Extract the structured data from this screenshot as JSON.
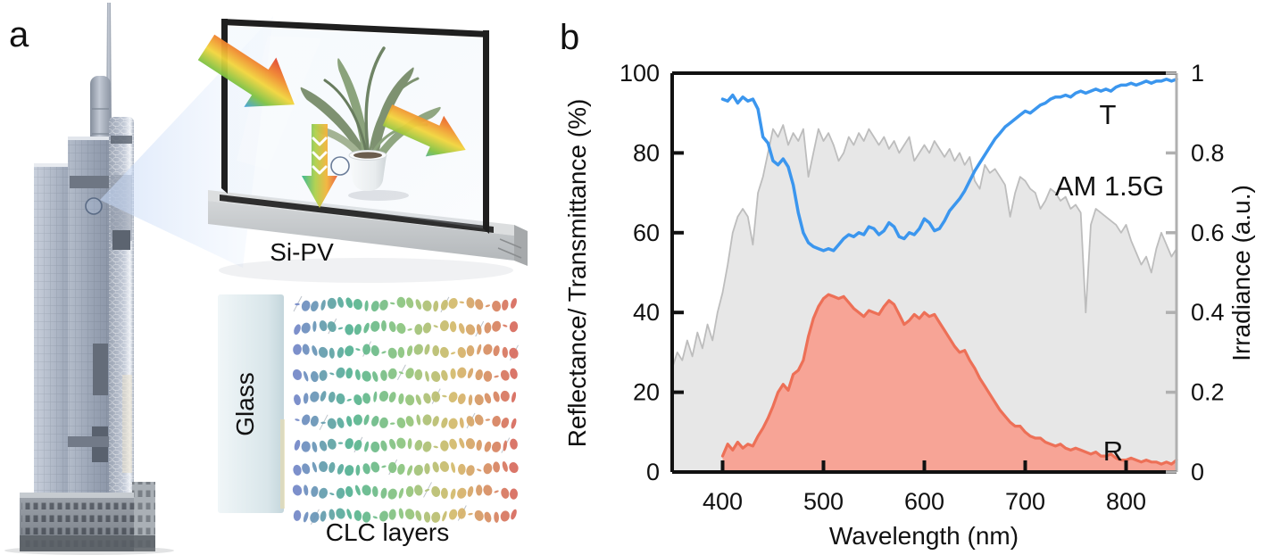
{
  "panels": {
    "a": {
      "label": "a",
      "si_pv_label": "Si-PV",
      "glass_label": "Glass",
      "clc_label": "CLC layers"
    },
    "b": {
      "label": "b"
    }
  },
  "chart_data": {
    "type": "line",
    "x_label": "Wavelength (nm)",
    "y_left_label": "Reflectance/ Transmittance (%)",
    "y_right_label": "Irradiance (a.u.)",
    "x_range": [
      350,
      850
    ],
    "y_left_range": [
      0,
      100
    ],
    "y_right_range": [
      0,
      1
    ],
    "x_tick_values": [
      400,
      500,
      600,
      700,
      800
    ],
    "x_tick_labels": [
      "400",
      "500",
      "600",
      "700",
      "800"
    ],
    "y_left_tick_values": [
      0,
      20,
      40,
      60,
      80,
      100
    ],
    "y_left_tick_labels": [
      "0",
      "20",
      "40",
      "60",
      "80",
      "100"
    ],
    "y_right_tick_values": [
      0,
      0.2,
      0.4,
      0.6,
      0.8,
      1
    ],
    "y_right_tick_labels": [
      "0",
      "0.2",
      "0.4",
      "0.6",
      "0.8",
      "1"
    ],
    "grid": false,
    "legend_position": "inline-annotations",
    "series": [
      {
        "name": "T",
        "label": "T",
        "axis": "left",
        "type": "line",
        "color": "#3b96ee",
        "x_start": 400,
        "x_step": 5,
        "values": [
          93.5,
          93,
          94.5,
          92.5,
          94,
          93,
          93.5,
          91,
          84,
          82.5,
          78,
          77,
          78.5,
          76.5,
          72,
          65,
          60,
          57.5,
          56.5,
          56,
          55.5,
          56,
          55.5,
          57,
          58.5,
          59.5,
          59,
          60,
          59.5,
          61.5,
          61,
          59.5,
          60.5,
          62.5,
          61.5,
          59,
          58.5,
          60,
          59.5,
          61,
          63.5,
          62.5,
          60.5,
          61,
          63,
          65.5,
          67,
          68.5,
          70.5,
          73,
          75.5,
          77.5,
          79.5,
          81.5,
          83.5,
          85,
          86.5,
          87.5,
          88.5,
          89.5,
          90.5,
          90,
          91,
          92,
          92.5,
          93.5,
          94,
          94,
          94.5,
          94,
          95,
          95.5,
          95,
          95.5,
          96,
          95.5,
          96,
          95.5,
          96.5,
          97,
          97,
          97.5,
          97,
          97.5,
          98,
          97.5,
          98,
          98,
          98.5,
          98,
          98.5
        ]
      },
      {
        "name": "R",
        "label": "R",
        "axis": "left",
        "type": "area",
        "color": "#ed7057",
        "fill": "#f7a496",
        "x_start": 400,
        "x_step": 5,
        "values": [
          4,
          7,
          5.5,
          7.5,
          6,
          7,
          6.5,
          9,
          11,
          13.5,
          16.5,
          20,
          22,
          20.5,
          24.5,
          25.5,
          28,
          34,
          38.5,
          41.5,
          43.5,
          44.5,
          44,
          43.5,
          44,
          42.5,
          41,
          40,
          39,
          40.5,
          40,
          39.5,
          41.5,
          43,
          42,
          39.5,
          37,
          38,
          39.5,
          38.5,
          40,
          39,
          39.5,
          37.5,
          35.5,
          33.5,
          31.5,
          30,
          30.5,
          28,
          26,
          23.5,
          21.5,
          19.5,
          17.5,
          15.5,
          14,
          12.5,
          11.5,
          11.5,
          10,
          9,
          8.5,
          8.5,
          7.5,
          7,
          6.5,
          7,
          6,
          5.5,
          6,
          5.5,
          5,
          4.5,
          5,
          4,
          4,
          4.5,
          3.5,
          3,
          3,
          3.5,
          3,
          2.5,
          3,
          2.5,
          2.5,
          2,
          2.5,
          2,
          3
        ]
      },
      {
        "name": "AM 1.5G",
        "label": "AM 1.5G",
        "axis": "right",
        "type": "area",
        "color": "#bdbdbd",
        "fill": "#e7e7e7",
        "x_start": 350,
        "x_step": 5,
        "values": [
          0.26,
          0.3,
          0.28,
          0.33,
          0.29,
          0.35,
          0.31,
          0.37,
          0.33,
          0.4,
          0.45,
          0.52,
          0.6,
          0.64,
          0.66,
          0.64,
          0.57,
          0.7,
          0.74,
          0.8,
          0.86,
          0.84,
          0.87,
          0.82,
          0.85,
          0.83,
          0.86,
          0.74,
          0.8,
          0.86,
          0.83,
          0.85,
          0.82,
          0.78,
          0.8,
          0.84,
          0.82,
          0.85,
          0.83,
          0.86,
          0.84,
          0.82,
          0.84,
          0.81,
          0.83,
          0.8,
          0.82,
          0.84,
          0.78,
          0.8,
          0.82,
          0.8,
          0.83,
          0.81,
          0.79,
          0.81,
          0.78,
          0.8,
          0.77,
          0.79,
          0.73,
          0.71,
          0.77,
          0.75,
          0.76,
          0.74,
          0.72,
          0.64,
          0.7,
          0.74,
          0.73,
          0.71,
          0.7,
          0.66,
          0.68,
          0.71,
          0.7,
          0.68,
          0.69,
          0.66,
          0.67,
          0.65,
          0.4,
          0.62,
          0.66,
          0.65,
          0.64,
          0.63,
          0.62,
          0.6,
          0.62,
          0.58,
          0.55,
          0.52,
          0.54,
          0.5,
          0.56,
          0.6,
          0.57,
          0.54,
          0.56
        ]
      }
    ],
    "annotation_colors": {
      "T": "#3b96ee",
      "AM15G": "#8f8f8f",
      "R": "#ed7057"
    }
  },
  "illustration": {
    "clc_palette": [
      "#7287c7",
      "#53b391",
      "#8fc57c",
      "#d6ba69",
      "#d76a5c"
    ],
    "arrow_rainbow": [
      "#e0432f",
      "#f0832d",
      "#f2d53c",
      "#7fc242",
      "#3e9fe0"
    ],
    "down_arrow_gradient": [
      "#35b68e",
      "#aed04b",
      "#f2b43a",
      "#e8603a"
    ]
  }
}
